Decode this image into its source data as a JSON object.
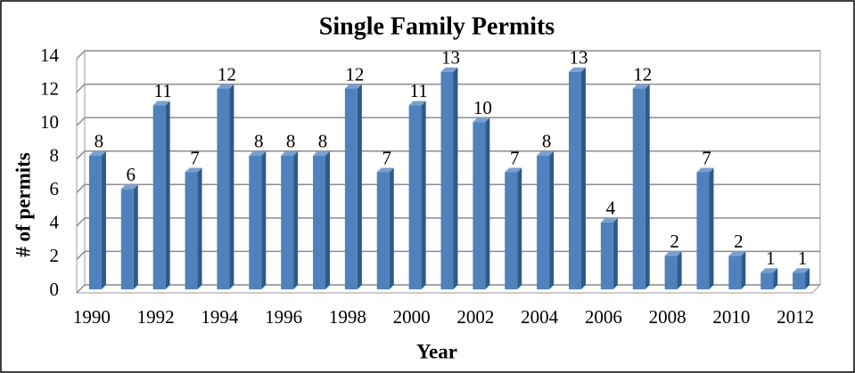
{
  "chart_data": {
    "type": "bar",
    "title": "Single Family Permits",
    "xlabel": "Year",
    "ylabel": "# of permits",
    "categories": [
      "1990",
      null,
      "1992",
      null,
      "1994",
      null,
      "1996",
      null,
      "1998",
      null,
      "2000",
      null,
      "2002",
      null,
      "2004",
      null,
      "2006",
      null,
      "2008",
      null,
      "2010",
      null,
      "2012"
    ],
    "values": [
      8,
      6,
      11,
      7,
      12,
      8,
      8,
      8,
      12,
      7,
      11,
      13,
      10,
      7,
      8,
      13,
      4,
      12,
      2,
      7,
      2,
      1,
      1
    ],
    "color": "#4f81bd",
    "ylim": [
      0,
      14
    ],
    "yticks": [
      0,
      2,
      4,
      6,
      8,
      10,
      12,
      14
    ],
    "grid": true
  }
}
